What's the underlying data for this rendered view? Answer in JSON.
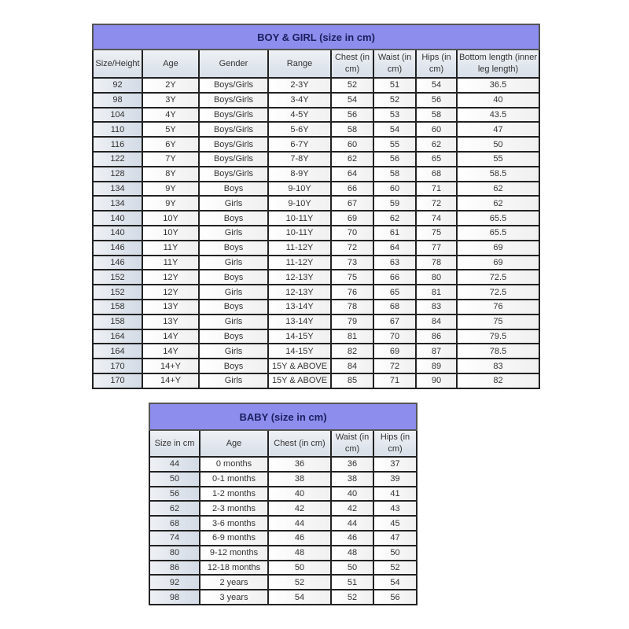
{
  "kids_table": {
    "title": "BOY & GIRL (size in cm)",
    "headers": [
      "Size/Height",
      "Age",
      "Gender",
      "Range",
      "Chest (in cm)",
      "Waist (in cm)",
      "Hips (in cm)",
      "Bottom length (inner leg length)"
    ],
    "rows": [
      [
        "92",
        "2Y",
        "Boys/Girls",
        "2-3Y",
        "52",
        "51",
        "54",
        "36.5"
      ],
      [
        "98",
        "3Y",
        "Boys/Girls",
        "3-4Y",
        "54",
        "52",
        "56",
        "40"
      ],
      [
        "104",
        "4Y",
        "Boys/Girls",
        "4-5Y",
        "56",
        "53",
        "58",
        "43.5"
      ],
      [
        "110",
        "5Y",
        "Boys/Girls",
        "5-6Y",
        "58",
        "54",
        "60",
        "47"
      ],
      [
        "116",
        "6Y",
        "Boys/Girls",
        "6-7Y",
        "60",
        "55",
        "62",
        "50"
      ],
      [
        "122",
        "7Y",
        "Boys/Girls",
        "7-8Y",
        "62",
        "56",
        "65",
        "55"
      ],
      [
        "128",
        "8Y",
        "Boys/Girls",
        "8-9Y",
        "64",
        "58",
        "68",
        "58.5"
      ],
      [
        "134",
        "9Y",
        "Boys",
        "9-10Y",
        "66",
        "60",
        "71",
        "62"
      ],
      [
        "134",
        "9Y",
        "Girls",
        "9-10Y",
        "67",
        "59",
        "72",
        "62"
      ],
      [
        "140",
        "10Y",
        "Boys",
        "10-11Y",
        "69",
        "62",
        "74",
        "65.5"
      ],
      [
        "140",
        "10Y",
        "Girls",
        "10-11Y",
        "70",
        "61",
        "75",
        "65.5"
      ],
      [
        "146",
        "11Y",
        "Boys",
        "11-12Y",
        "72",
        "64",
        "77",
        "69"
      ],
      [
        "146",
        "11Y",
        "Girls",
        "11-12Y",
        "73",
        "63",
        "78",
        "69"
      ],
      [
        "152",
        "12Y",
        "Boys",
        "12-13Y",
        "75",
        "66",
        "80",
        "72.5"
      ],
      [
        "152",
        "12Y",
        "Girls",
        "12-13Y",
        "76",
        "65",
        "81",
        "72.5"
      ],
      [
        "158",
        "13Y",
        "Boys",
        "13-14Y",
        "78",
        "68",
        "83",
        "76"
      ],
      [
        "158",
        "13Y",
        "Girls",
        "13-14Y",
        "79",
        "67",
        "84",
        "75"
      ],
      [
        "164",
        "14Y",
        "Boys",
        "14-15Y",
        "81",
        "70",
        "86",
        "79.5"
      ],
      [
        "164",
        "14Y",
        "Girls",
        "14-15Y",
        "82",
        "69",
        "87",
        "78.5"
      ],
      [
        "170",
        "14+Y",
        "Boys",
        "15Y & ABOVE",
        "84",
        "72",
        "89",
        "83"
      ],
      [
        "170",
        "14+Y",
        "Girls",
        "15Y & ABOVE",
        "85",
        "71",
        "90",
        "82"
      ]
    ]
  },
  "baby_table": {
    "title": "BABY (size in cm)",
    "headers": [
      "Size in cm",
      "Age",
      "Chest (in cm)",
      "Waist (in cm)",
      "Hips (in cm)"
    ],
    "rows": [
      [
        "44",
        "0 months",
        "36",
        "36",
        "37"
      ],
      [
        "50",
        "0-1 months",
        "38",
        "38",
        "39"
      ],
      [
        "56",
        "1-2 months",
        "40",
        "40",
        "41"
      ],
      [
        "62",
        "2-3 months",
        "42",
        "42",
        "43"
      ],
      [
        "68",
        "3-6 months",
        "44",
        "44",
        "45"
      ],
      [
        "74",
        "6-9 months",
        "46",
        "46",
        "47"
      ],
      [
        "80",
        "9-12 months",
        "48",
        "48",
        "50"
      ],
      [
        "86",
        "12-18 months",
        "50",
        "50",
        "52"
      ],
      [
        "92",
        "2 years",
        "52",
        "51",
        "54"
      ],
      [
        "98",
        "3 years",
        "54",
        "52",
        "56"
      ]
    ]
  },
  "colors": {
    "header_bg": "#8d8ded",
    "title_text": "#1b2060",
    "border": "#222222"
  }
}
